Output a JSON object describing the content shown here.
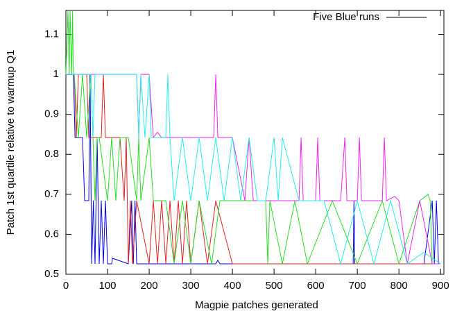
{
  "chart_data": {
    "type": "line",
    "x_label": "Magpie patches generated",
    "y_label": "Patch 1st quartile relative to warmup Q1",
    "legend": {
      "label": "Five Blue runs",
      "color": "#000000",
      "position": "top-right"
    },
    "xlim": [
      0,
      908
    ],
    "ylim": [
      0.5,
      1.16
    ],
    "xticks": [
      0,
      100,
      200,
      300,
      400,
      500,
      600,
      700,
      800,
      900
    ],
    "yticks": [
      0.5,
      0.6,
      0.7,
      0.8,
      0.9,
      1,
      1.1
    ],
    "grid": false,
    "series": [
      {
        "color": "#0000ee",
        "x": [
          0,
          15,
          18,
          22,
          40,
          45,
          55,
          58,
          62,
          66,
          70,
          75,
          80,
          85,
          90,
          95,
          100,
          105,
          110,
          112,
          150,
          158,
          162,
          166,
          170,
          200,
          360,
          365,
          370,
          600,
          690,
          692,
          694,
          860,
          880,
          885,
          890,
          895,
          900
        ],
        "values": [
          1,
          1,
          1,
          0.842,
          0.842,
          0.684,
          0.684,
          1,
          0.526,
          0.684,
          0.526,
          0.842,
          0.526,
          0.684,
          0.526,
          0.684,
          0.526,
          0.526,
          0.526,
          0.54,
          0.526,
          0.684,
          0.526,
          0.684,
          0.526,
          0.526,
          0.526,
          0.535,
          0.526,
          0.526,
          0.526,
          0.684,
          0.526,
          0.526,
          0.684,
          0.526,
          0.684,
          0.526,
          0.526
        ]
      },
      {
        "color": "#dd2222",
        "x": [
          0,
          20,
          25,
          30,
          50,
          55,
          60,
          85,
          90,
          95,
          100,
          130,
          140,
          145,
          150,
          155,
          160,
          170,
          200,
          210,
          220,
          230,
          240,
          250,
          260,
          270,
          280,
          290,
          300,
          320,
          340,
          360,
          400,
          410,
          500,
          900
        ],
        "values": [
          1,
          1,
          0.842,
          1,
          1,
          0.842,
          0.842,
          0.842,
          1,
          0.842,
          0.842,
          0.842,
          0.684,
          0.842,
          0.526,
          0.684,
          0.526,
          0.684,
          0.526,
          0.684,
          0.526,
          0.684,
          0.526,
          0.684,
          0.526,
          0.684,
          0.526,
          0.684,
          0.526,
          0.684,
          0.526,
          0.684,
          0.526,
          0.526,
          0.526,
          0.526
        ]
      },
      {
        "color": "#22dd22",
        "x": [
          0,
          5,
          8,
          10,
          14,
          16,
          18,
          20,
          30,
          40,
          50,
          60,
          70,
          75,
          80,
          100,
          110,
          120,
          130,
          150,
          170,
          175,
          180,
          200,
          210,
          240,
          260,
          280,
          300,
          320,
          350,
          370,
          400,
          450,
          480,
          485,
          490,
          520,
          550,
          580,
          640,
          700,
          760,
          800,
          850,
          870,
          875,
          880,
          900
        ],
        "values": [
          1,
          1.158,
          1,
          1.158,
          1,
          1.158,
          1,
          1,
          0.842,
          1,
          0.842,
          1,
          0.684,
          0.842,
          0.842,
          0.684,
          0.842,
          0.684,
          0.842,
          0.842,
          0.684,
          0.842,
          0.684,
          0.842,
          0.684,
          0.684,
          0.526,
          0.684,
          0.526,
          0.684,
          0.526,
          0.684,
          0.684,
          0.684,
          0.684,
          0.526,
          0.684,
          0.526,
          0.684,
          0.526,
          0.684,
          0.526,
          0.684,
          0.526,
          0.684,
          0.7,
          0.684,
          0.526,
          0.526
        ]
      },
      {
        "color": "#ee22ee",
        "x": [
          0,
          20,
          25,
          170,
          175,
          180,
          200,
          210,
          220,
          230,
          240,
          355,
          360,
          365,
          370,
          400,
          430,
          440,
          450,
          500,
          540,
          560,
          565,
          570,
          600,
          605,
          610,
          620,
          660,
          670,
          675,
          680,
          700,
          705,
          710,
          760,
          765,
          770,
          790,
          800,
          820,
          850,
          880,
          900
        ],
        "values": [
          1,
          1,
          1,
          1,
          0.842,
          1,
          1,
          0.842,
          0.855,
          0.842,
          0.842,
          0.842,
          1,
          0.842,
          0.842,
          0.842,
          0.684,
          0.842,
          0.684,
          0.684,
          0.684,
          0.684,
          0.842,
          0.684,
          0.684,
          0.842,
          0.684,
          0.684,
          0.684,
          0.842,
          0.684,
          0.684,
          0.684,
          0.842,
          0.684,
          0.684,
          0.842,
          0.684,
          0.695,
          0.684,
          0.526,
          0.684,
          0.526,
          0.526
        ]
      },
      {
        "color": "#22eeee",
        "x": [
          0,
          40,
          60,
          65,
          70,
          170,
          175,
          180,
          190,
          200,
          205,
          210,
          240,
          245,
          250,
          260,
          280,
          300,
          320,
          340,
          360,
          380,
          400,
          420,
          440,
          460,
          480,
          500,
          510,
          520,
          560,
          580,
          620,
          660,
          700,
          740,
          780,
          820,
          860,
          900
        ],
        "values": [
          1,
          1,
          1,
          0.842,
          1,
          1,
          0.842,
          1,
          0.842,
          1,
          0.842,
          0.842,
          0.842,
          1,
          0.842,
          0.684,
          0.842,
          0.684,
          0.842,
          0.684,
          0.842,
          0.684,
          0.842,
          0.684,
          0.842,
          0.684,
          0.684,
          0.842,
          0.684,
          0.842,
          0.684,
          0.684,
          0.684,
          0.526,
          0.684,
          0.526,
          0.684,
          0.526,
          0.555,
          0.526
        ]
      }
    ]
  }
}
